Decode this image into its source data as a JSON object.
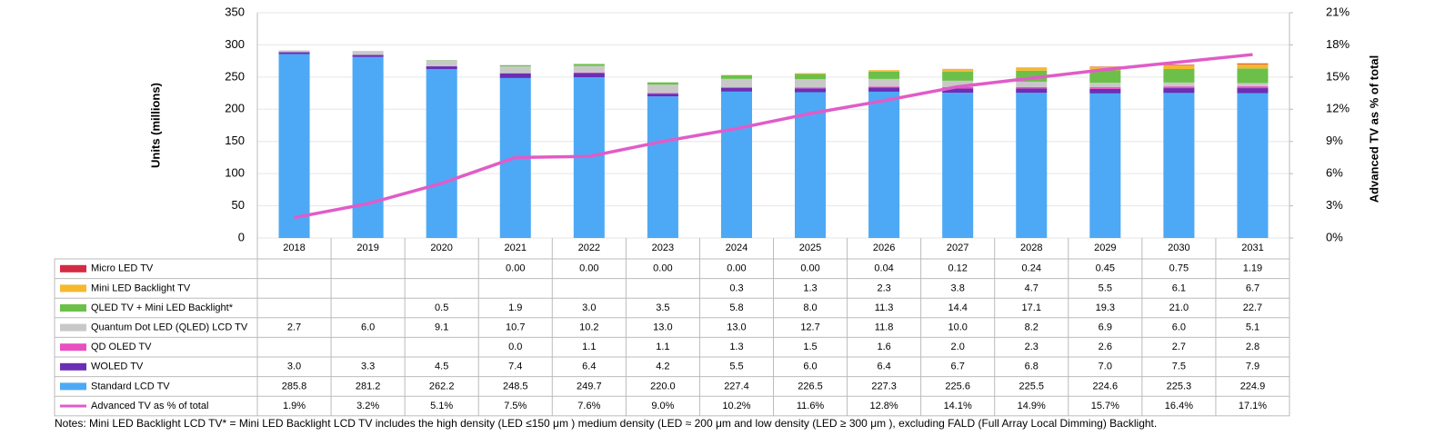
{
  "chart_data": {
    "type": "bar",
    "stacked": true,
    "y_label": "Units (millions)",
    "y2_label": "Advanced TV as % of total",
    "categories": [
      "2018",
      "2019",
      "2020",
      "2021",
      "2022",
      "2023",
      "2024",
      "2025",
      "2026",
      "2027",
      "2028",
      "2029",
      "2030",
      "2031"
    ],
    "ylim": [
      0,
      350
    ],
    "yticks": [
      0,
      50,
      100,
      150,
      200,
      250,
      300,
      350
    ],
    "y2lim": [
      0,
      21
    ],
    "y2ticks": [
      {
        "value": 0,
        "label": "0%"
      },
      {
        "value": 3,
        "label": "3%"
      },
      {
        "value": 6,
        "label": "6%"
      },
      {
        "value": 9,
        "label": "9%"
      },
      {
        "value": 12,
        "label": "12%"
      },
      {
        "value": 15,
        "label": "15%"
      },
      {
        "value": 18,
        "label": "18%"
      },
      {
        "value": 21,
        "label": "21%"
      }
    ],
    "grid": true,
    "series": [
      {
        "name": "Micro LED TV",
        "color": "#d42a44",
        "values": [
          null,
          null,
          null,
          0,
          0,
          0,
          0,
          0,
          0.04,
          0.12,
          0.24,
          0.45,
          0.75,
          1.19
        ],
        "value_labels": [
          null,
          null,
          null,
          "0.00",
          "0.00",
          "0.00",
          "0.00",
          "0.00",
          "0.04",
          "0.12",
          "0.24",
          "0.45",
          "0.75",
          "1.19"
        ]
      },
      {
        "name": "Mini LED Backlight TV",
        "color": "#f5b82e",
        "values": [
          null,
          null,
          null,
          null,
          null,
          null,
          0.3,
          1.3,
          2.3,
          3.8,
          4.7,
          5.5,
          6.1,
          6.7
        ],
        "value_labels": [
          null,
          null,
          null,
          null,
          null,
          null,
          "0.3",
          "1.3",
          "2.3",
          "3.8",
          "4.7",
          "5.5",
          "6.1",
          "6.7"
        ]
      },
      {
        "name": "QLED TV + Mini LED Backlight*",
        "color": "#6cc04a",
        "values": [
          null,
          null,
          0.5,
          1.9,
          3.0,
          3.5,
          5.8,
          8.0,
          11.3,
          14.4,
          17.1,
          19.3,
          21.0,
          22.7
        ],
        "value_labels": [
          null,
          null,
          "0.5",
          "1.9",
          "3.0",
          "3.5",
          "5.8",
          "8.0",
          "11.3",
          "14.4",
          "17.1",
          "19.3",
          "21.0",
          "22.7"
        ]
      },
      {
        "name": "Quantum Dot LED (QLED) LCD TV",
        "color": "#c8c8c8",
        "values": [
          2.7,
          6.0,
          9.1,
          10.7,
          10.2,
          13.0,
          13.0,
          12.7,
          11.8,
          10.0,
          8.2,
          6.9,
          6.0,
          5.1
        ],
        "value_labels": [
          "2.7",
          "6.0",
          "9.1",
          "10.7",
          "10.2",
          "13.0",
          "13.0",
          "12.7",
          "11.8",
          "10.0",
          "8.2",
          "6.9",
          "6.0",
          "5.1"
        ]
      },
      {
        "name": "QD OLED TV",
        "color": "#e84fc0",
        "values": [
          null,
          null,
          null,
          0.0,
          1.1,
          1.1,
          1.3,
          1.5,
          1.6,
          2.0,
          2.3,
          2.6,
          2.7,
          2.8
        ],
        "value_labels": [
          null,
          null,
          null,
          "0.0",
          "1.1",
          "1.1",
          "1.3",
          "1.5",
          "1.6",
          "2.0",
          "2.3",
          "2.6",
          "2.7",
          "2.8"
        ]
      },
      {
        "name": "WOLED TV",
        "color": "#6a2fb5",
        "values": [
          3.0,
          3.3,
          4.5,
          7.4,
          6.4,
          4.2,
          5.5,
          6.0,
          6.4,
          6.7,
          6.8,
          7.0,
          7.5,
          7.9
        ],
        "value_labels": [
          "3.0",
          "3.3",
          "4.5",
          "7.4",
          "6.4",
          "4.2",
          "5.5",
          "6.0",
          "6.4",
          "6.7",
          "6.8",
          "7.0",
          "7.5",
          "7.9"
        ]
      },
      {
        "name": "Standard LCD TV",
        "color": "#4da9f5",
        "values": [
          285.8,
          281.2,
          262.2,
          248.5,
          249.7,
          220.0,
          227.4,
          226.5,
          227.3,
          225.6,
          225.5,
          224.6,
          225.3,
          224.9
        ],
        "value_labels": [
          "285.8",
          "281.2",
          "262.2",
          "248.5",
          "249.7",
          "220.0",
          "227.4",
          "226.5",
          "227.3",
          "225.6",
          "225.5",
          "224.6",
          "225.3",
          "224.9"
        ]
      },
      {
        "name": "Advanced TV as % of total",
        "color": "#e05cc8",
        "type": "line",
        "axis": "y2",
        "values": [
          1.9,
          3.2,
          5.1,
          7.5,
          7.6,
          9.0,
          10.2,
          11.6,
          12.8,
          14.1,
          14.9,
          15.7,
          16.4,
          17.1
        ],
        "value_labels": [
          "1.9%",
          "3.2%",
          "5.1%",
          "7.5%",
          "7.6%",
          "9.0%",
          "10.2%",
          "11.6%",
          "12.8%",
          "14.1%",
          "14.9%",
          "15.7%",
          "16.4%",
          "17.1%"
        ]
      }
    ],
    "note": "Notes: Mini LED Backlight LCD TV* = Mini LED Backlight LCD TV includes the high density (LED ≤150 μm ) medium density (LED ≈ 200 μm and low density (LED ≥ 300 μm ), excluding FALD (Full Array Local Dimming) Backlight."
  }
}
